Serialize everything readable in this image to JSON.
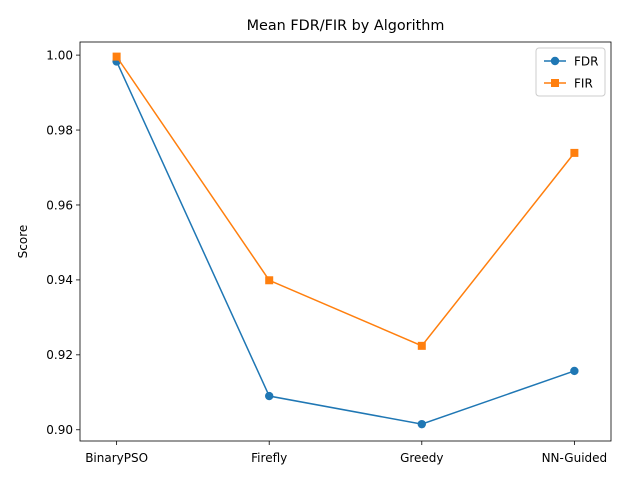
{
  "chart_data": {
    "type": "line",
    "title": "Mean FDR/FIR by Algorithm",
    "xlabel": "",
    "ylabel": "Score",
    "categories": [
      "BinaryPSO",
      "Firefly",
      "Greedy",
      "NN-Guided"
    ],
    "ylim": [
      0.897,
      1.0035
    ],
    "yticks": [
      0.9,
      0.92,
      0.94,
      0.96,
      0.98,
      1.0
    ],
    "ytick_labels": [
      "0.90",
      "0.92",
      "0.94",
      "0.96",
      "0.98",
      "1.00"
    ],
    "grid": false,
    "legend_position": "top-right",
    "series": [
      {
        "name": "FDR",
        "color": "#1f77b4",
        "marker": "circle",
        "values": [
          0.9983,
          0.909,
          0.9015,
          0.9157
        ]
      },
      {
        "name": "FIR",
        "color": "#ff7f0e",
        "marker": "square",
        "values": [
          0.9996,
          0.9399,
          0.9224,
          0.9739
        ]
      }
    ]
  }
}
